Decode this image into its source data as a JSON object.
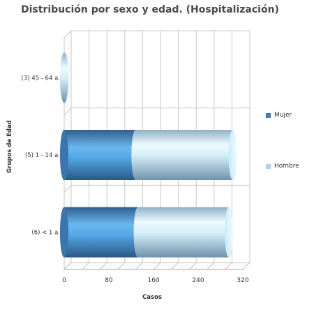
{
  "chart_data": {
    "type": "bar",
    "orientation": "horizontal",
    "stacked": true,
    "style": "3d-cylinder",
    "title": "Distribución por sexo y edad. (Hospitalización)",
    "xlabel": "Casos",
    "ylabel": "Grupos de Edad",
    "categories": [
      "(3) 45 - 64 a.",
      "(5) 1 - 14 a.",
      "(6) < 1 a."
    ],
    "series": [
      {
        "name": "Mujer",
        "color": "#3d7ab8",
        "values": [
          0,
          128,
          132
        ]
      },
      {
        "name": "Hombre",
        "color": "#a8d4f0",
        "values": [
          2,
          174,
          163
        ]
      }
    ],
    "xlim": [
      0,
      320
    ],
    "xticks": [
      0,
      80,
      160,
      240,
      320
    ],
    "grid": true,
    "legend_position": "right"
  }
}
